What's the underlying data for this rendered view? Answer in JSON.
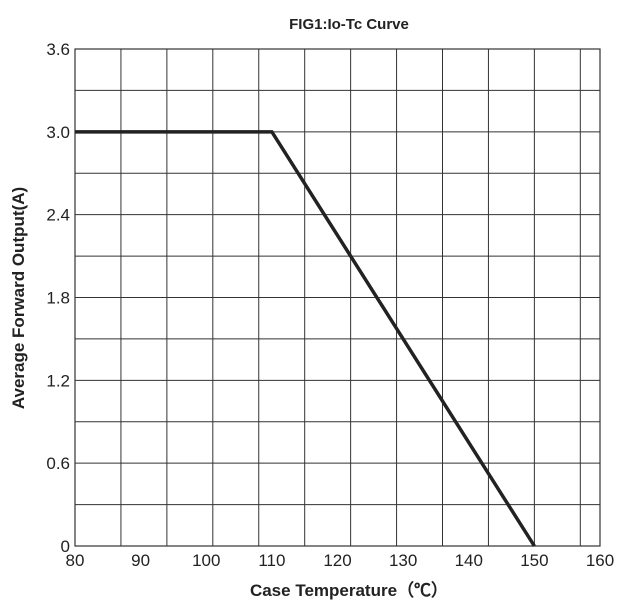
{
  "chart_data": {
    "type": "line",
    "title": "FIG1:Io-Tc Curve",
    "xlabel": "Case Temperature（℃）",
    "ylabel": "Average Forward Output(A)",
    "xlim": [
      80,
      160
    ],
    "ylim": [
      0,
      3.6
    ],
    "x_ticks": [
      "80",
      "90",
      "100",
      "110",
      "120",
      "130",
      "140",
      "150",
      "160"
    ],
    "y_ticks": [
      "0",
      "0.6",
      "1.2",
      "1.8",
      "2.4",
      "3.0",
      "3.6"
    ],
    "x_minor_step": 7,
    "y_minor_step": 0.3,
    "grid": true,
    "series": [
      {
        "x": [
          80,
          110,
          150
        ],
        "y": [
          3.0,
          3.0,
          0
        ]
      }
    ],
    "colors": {
      "line": "#222222",
      "grid": "#333333",
      "text": "#222222"
    }
  }
}
